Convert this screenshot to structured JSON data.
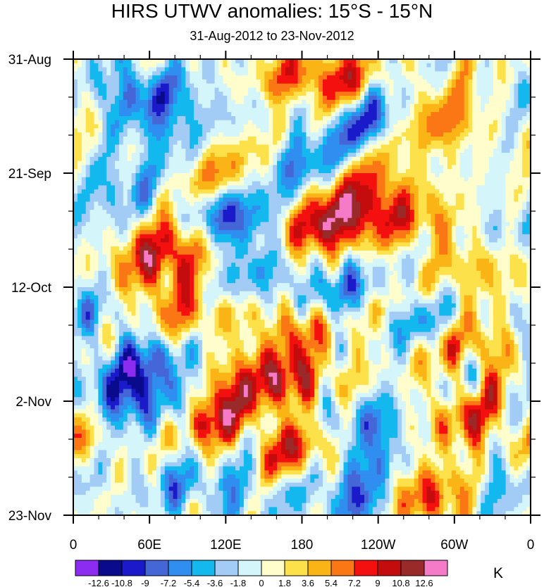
{
  "chart_data": {
    "type": "heatmap",
    "title": "HIRS UTWV anomalies: 15°S - 15°N",
    "subtitle": "31-Aug-2012 to 23-Nov-2012",
    "x_tick_labels": [
      "0",
      "60E",
      "120E",
      "180",
      "120W",
      "60W",
      "0"
    ],
    "x_range_deg_east": [
      0,
      360
    ],
    "y_tick_labels": [
      "31-Aug",
      "21-Sep",
      "12-Oct",
      "2-Nov",
      "23-Nov"
    ],
    "y_range_days": [
      0,
      84
    ],
    "colorbar_unit": "K",
    "colorbar_levels": [
      "-12.6",
      "-10.8",
      "-9",
      "-7.2",
      "-5.4",
      "-3.6",
      "-1.8",
      "0",
      "1.8",
      "3.6",
      "5.4",
      "7.2",
      "9",
      "10.8",
      "12.6"
    ],
    "colorbar_colors": [
      "#8c2cf0",
      "#0a0a8c",
      "#1a1acb",
      "#4466d6",
      "#2f8ef0",
      "#13b8ee",
      "#a2ccf6",
      "#d4f6fb",
      "#fffdcc",
      "#fde14a",
      "#fbb415",
      "#fb7614",
      "#f51010",
      "#c40c0c",
      "#9a2a2a",
      "#f57bc8"
    ],
    "field_pattern": "eastward-propagating anomaly bands, values mostly between -9 and 9 K",
    "features": [
      {
        "lon": 54,
        "day": 6,
        "sign": -1,
        "amp": 8.5
      },
      {
        "lon": 165,
        "day": 4.5,
        "sign": 1,
        "amp": 9.5
      },
      {
        "lon": 212,
        "day": 4,
        "sign": 1,
        "amp": 7
      },
      {
        "lon": 162,
        "day": 7,
        "sign": -1,
        "amp": 7
      },
      {
        "lon": 238,
        "day": 12,
        "sign": -1,
        "amp": 7.5
      },
      {
        "lon": 290,
        "day": 12,
        "sign": 1,
        "amp": 7
      },
      {
        "lon": 72,
        "day": 12,
        "sign": -1,
        "amp": 4
      },
      {
        "lon": 35,
        "day": 23,
        "sign": -1,
        "amp": 4
      },
      {
        "lon": 115,
        "day": 22,
        "sign": 1,
        "amp": 5
      },
      {
        "lon": 185,
        "day": 20,
        "sign": -1,
        "amp": 5
      },
      {
        "lon": 232,
        "day": 23,
        "sign": 1,
        "amp": 6
      },
      {
        "lon": 78,
        "day": 34,
        "sign": 1,
        "amp": 8
      },
      {
        "lon": 108,
        "day": 28,
        "sign": -1,
        "amp": 7
      },
      {
        "lon": 142,
        "day": 31,
        "sign": -1,
        "amp": 7
      },
      {
        "lon": 182,
        "day": 31,
        "sign": 1,
        "amp": 9
      },
      {
        "lon": 222,
        "day": 29,
        "sign": 1,
        "amp": 7.5
      },
      {
        "lon": 275,
        "day": 30,
        "sign": 1,
        "amp": 6.5
      },
      {
        "lon": 332,
        "day": 32,
        "sign": -1,
        "amp": 4
      },
      {
        "lon": 62,
        "day": 39,
        "sign": 1,
        "amp": 6
      },
      {
        "lon": 145,
        "day": 40,
        "sign": -1,
        "amp": 4
      },
      {
        "lon": 210,
        "day": 43,
        "sign": -1,
        "amp": 8.5
      },
      {
        "lon": 240,
        "day": 46,
        "sign": 1,
        "amp": 6
      },
      {
        "lon": 322,
        "day": 38,
        "sign": 1,
        "amp": 5
      },
      {
        "lon": 18,
        "day": 47,
        "sign": -1,
        "amp": 4
      },
      {
        "lon": 100,
        "day": 48,
        "sign": 1,
        "amp": 8.5
      },
      {
        "lon": 48,
        "day": 56,
        "sign": -1,
        "amp": 8
      },
      {
        "lon": 118,
        "day": 52,
        "sign": -1,
        "amp": 4
      },
      {
        "lon": 178,
        "day": 50,
        "sign": 1,
        "amp": 6
      },
      {
        "lon": 268,
        "day": 48,
        "sign": -1,
        "amp": 7
      },
      {
        "lon": 318,
        "day": 53,
        "sign": 1,
        "amp": 7
      },
      {
        "lon": 142,
        "day": 58,
        "sign": 1,
        "amp": 7
      },
      {
        "lon": 182,
        "day": 60,
        "sign": 1,
        "amp": 7.5
      },
      {
        "lon": 30,
        "day": 62,
        "sign": -1,
        "amp": 5
      },
      {
        "lon": 70,
        "day": 64,
        "sign": -1,
        "amp": 6
      },
      {
        "lon": 112,
        "day": 66,
        "sign": 1,
        "amp": 9
      },
      {
        "lon": 222,
        "day": 66,
        "sign": -1,
        "amp": 7
      },
      {
        "lon": 306,
        "day": 66,
        "sign": 1,
        "amp": 7
      },
      {
        "lon": 172,
        "day": 72,
        "sign": 1,
        "amp": 8.5
      },
      {
        "lon": 240,
        "day": 74,
        "sign": -1,
        "amp": 4
      },
      {
        "lon": 80,
        "day": 78,
        "sign": -1,
        "amp": 5
      },
      {
        "lon": 140,
        "day": 79,
        "sign": -1,
        "amp": 4
      },
      {
        "lon": 220,
        "day": 81,
        "sign": -1,
        "amp": 7.5
      },
      {
        "lon": 278,
        "day": 80,
        "sign": 1,
        "amp": 9.5
      },
      {
        "lon": 330,
        "day": 78,
        "sign": -1,
        "amp": 4
      },
      {
        "lon": 10,
        "day": 70,
        "sign": 1,
        "amp": 4
      }
    ]
  }
}
